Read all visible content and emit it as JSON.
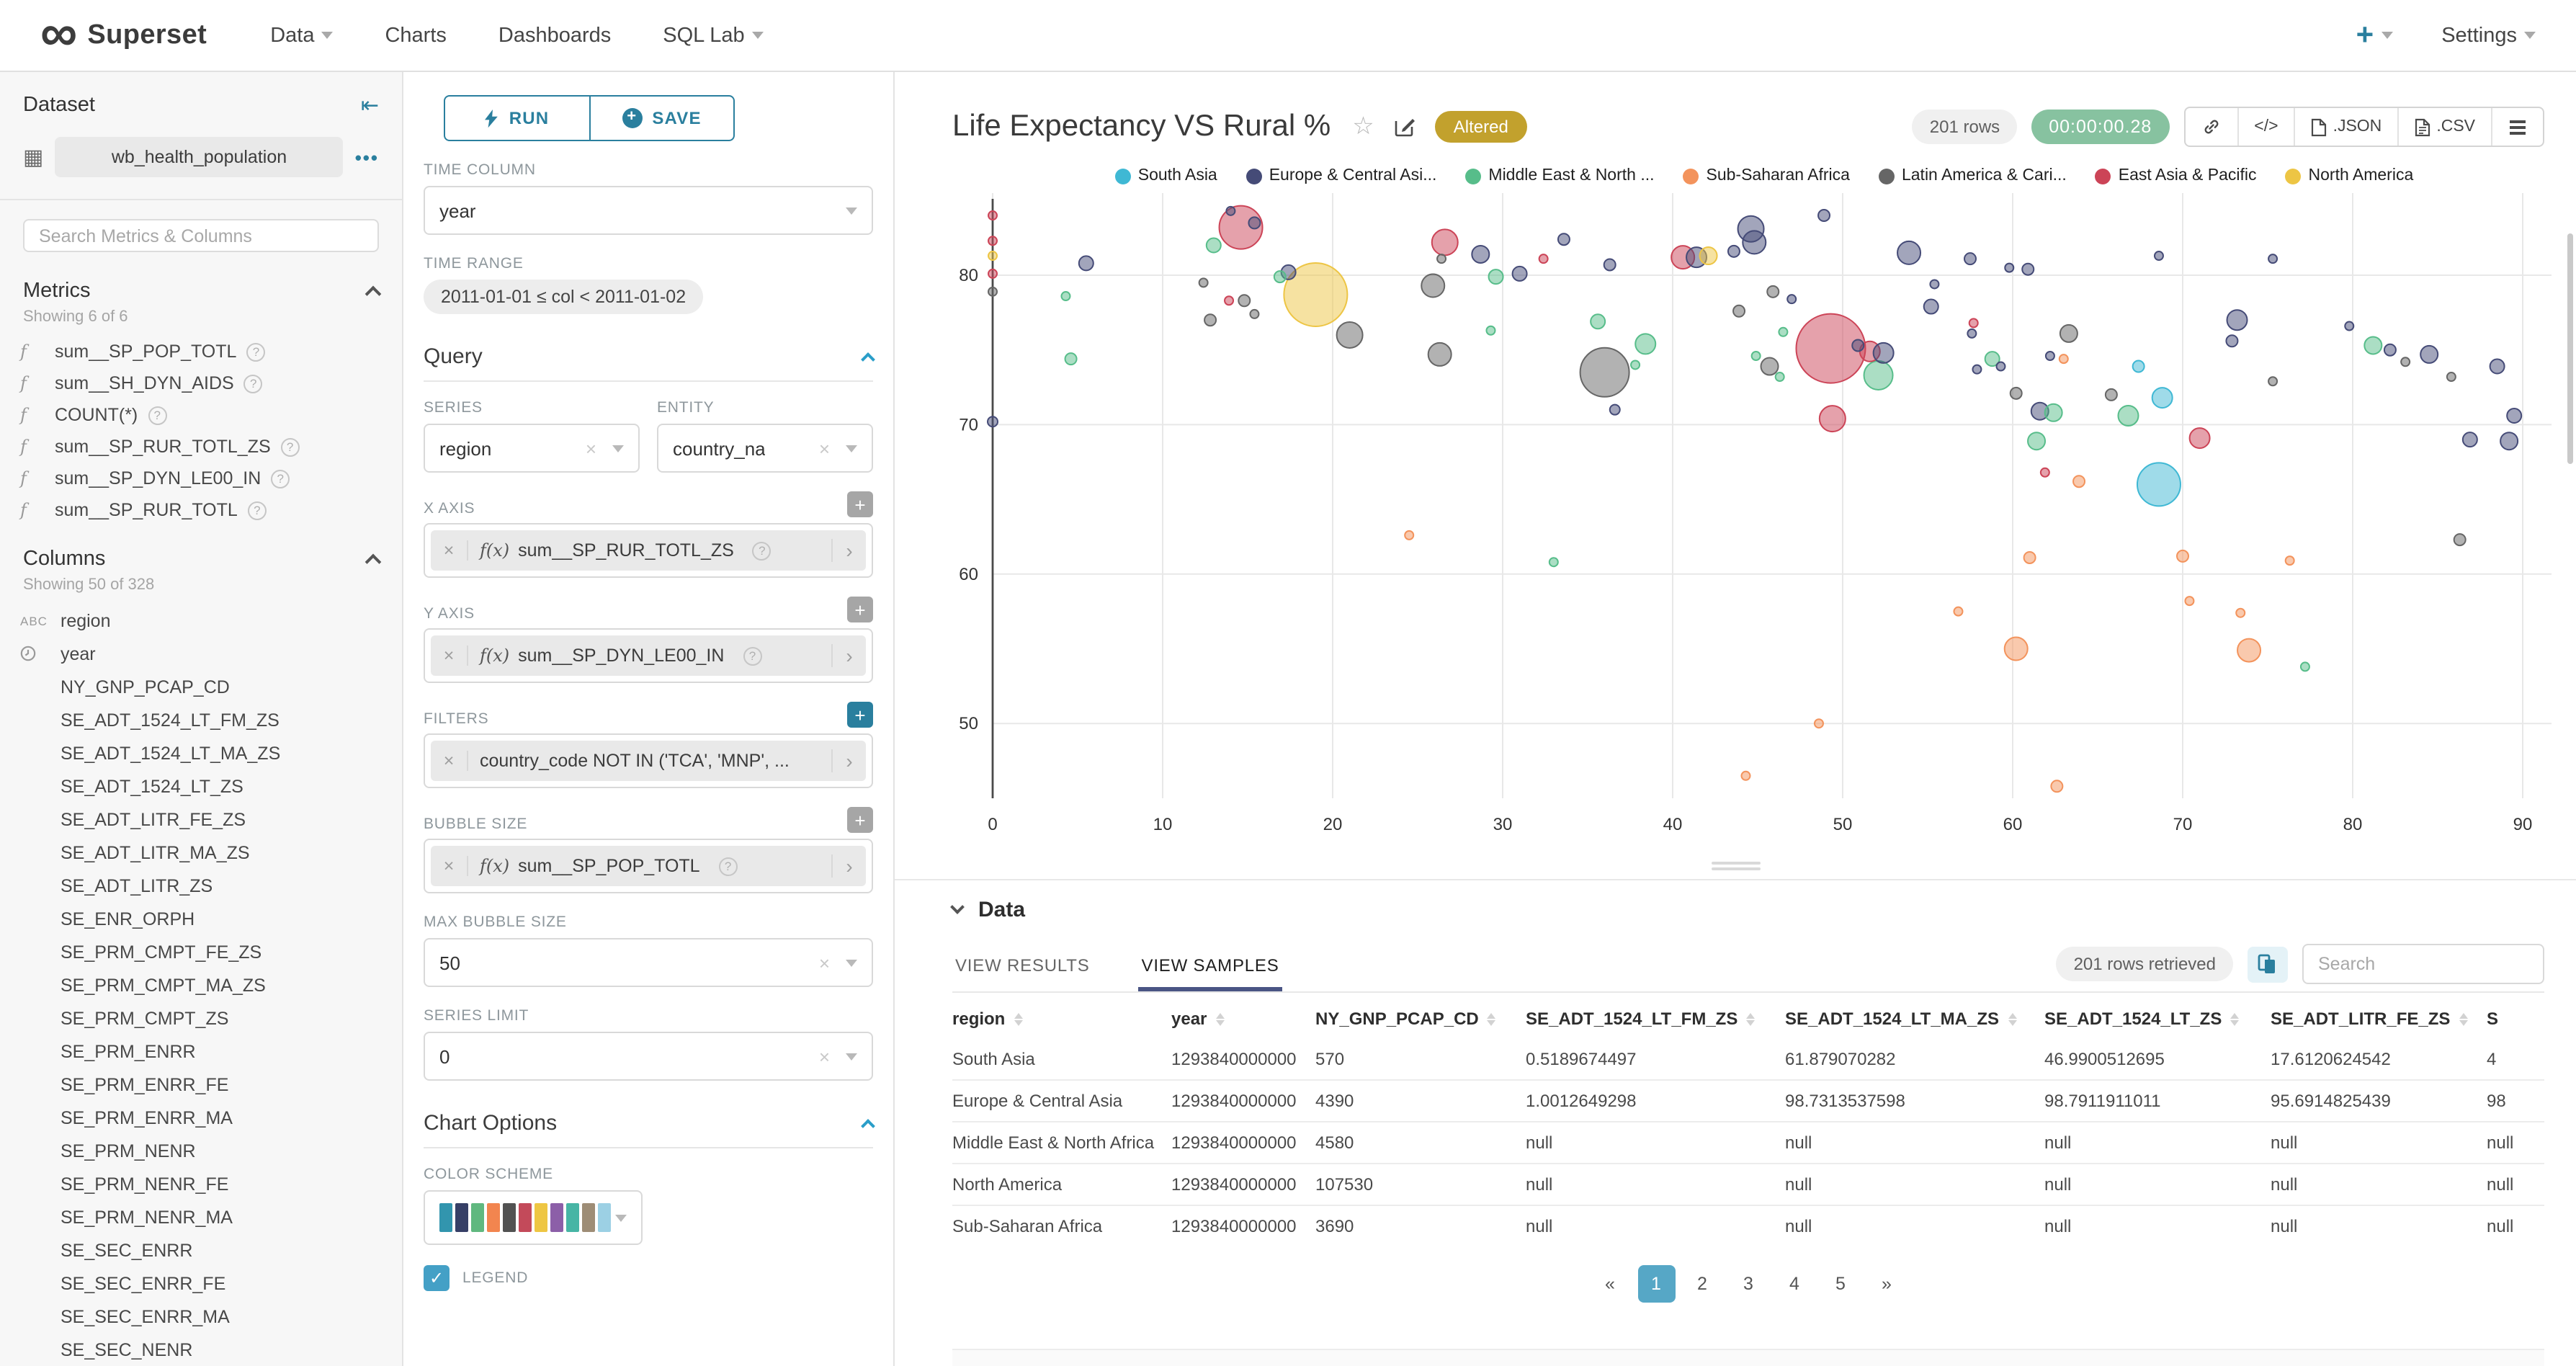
{
  "navbar": {
    "brand": "Superset",
    "items": [
      {
        "label": "Data",
        "caret": true
      },
      {
        "label": "Charts",
        "caret": false
      },
      {
        "label": "Dashboards",
        "caret": false
      },
      {
        "label": "SQL Lab",
        "caret": true
      }
    ],
    "plus_label": "+",
    "settings_label": "Settings"
  },
  "sidebar": {
    "title": "Dataset",
    "dataset_name": "wb_health_population",
    "more_label": "•••",
    "search_placeholder": "Search Metrics & Columns",
    "metrics_title": "Metrics",
    "metrics_count": "Showing 6 of 6",
    "metrics": [
      "sum__SP_POP_TOTL",
      "sum__SH_DYN_AIDS",
      "COUNT(*)",
      "sum__SP_RUR_TOTL_ZS",
      "sum__SP_DYN_LE00_IN",
      "sum__SP_RUR_TOTL"
    ],
    "columns_title": "Columns",
    "columns_count": "Showing 50 of 328",
    "columns": [
      {
        "name": "region",
        "icon": "abc"
      },
      {
        "name": "year",
        "icon": "clock"
      },
      {
        "name": "NY_GNP_PCAP_CD"
      },
      {
        "name": "SE_ADT_1524_LT_FM_ZS"
      },
      {
        "name": "SE_ADT_1524_LT_MA_ZS"
      },
      {
        "name": "SE_ADT_1524_LT_ZS"
      },
      {
        "name": "SE_ADT_LITR_FE_ZS"
      },
      {
        "name": "SE_ADT_LITR_MA_ZS"
      },
      {
        "name": "SE_ADT_LITR_ZS"
      },
      {
        "name": "SE_ENR_ORPH"
      },
      {
        "name": "SE_PRM_CMPT_FE_ZS"
      },
      {
        "name": "SE_PRM_CMPT_MA_ZS"
      },
      {
        "name": "SE_PRM_CMPT_ZS"
      },
      {
        "name": "SE_PRM_ENRR"
      },
      {
        "name": "SE_PRM_ENRR_FE"
      },
      {
        "name": "SE_PRM_ENRR_MA"
      },
      {
        "name": "SE_PRM_NENR"
      },
      {
        "name": "SE_PRM_NENR_FE"
      },
      {
        "name": "SE_PRM_NENR_MA"
      },
      {
        "name": "SE_SEC_ENRR"
      },
      {
        "name": "SE_SEC_ENRR_FE"
      },
      {
        "name": "SE_SEC_ENRR_MA"
      },
      {
        "name": "SE_SEC_NENR"
      }
    ]
  },
  "controls": {
    "run_label": "RUN",
    "save_label": "SAVE",
    "time_column_label": "TIME COLUMN",
    "time_column_value": "year",
    "time_range_label": "TIME RANGE",
    "time_range_value": "2011-01-01 ≤ col < 2011-01-02",
    "query_title": "Query",
    "series_label": "SERIES",
    "series_value": "region",
    "entity_label": "ENTITY",
    "entity_value": "country_na",
    "x_axis_label": "X AXIS",
    "x_axis_value": "sum__SP_RUR_TOTL_ZS",
    "y_axis_label": "Y AXIS",
    "y_axis_value": "sum__SP_DYN_LE00_IN",
    "filters_label": "FILTERS",
    "filters_value": "country_code NOT IN ('TCA', 'MNP', ...",
    "bubble_size_label": "BUBBLE SIZE",
    "bubble_size_value": "sum__SP_POP_TOTL",
    "max_bubble_label": "MAX BUBBLE SIZE",
    "max_bubble_value": "50",
    "series_limit_label": "SERIES LIMIT",
    "series_limit_value": "0",
    "chart_options_title": "Chart Options",
    "color_scheme_label": "COLOR SCHEME",
    "color_swatches": [
      "#3295ae",
      "#363f66",
      "#60b87f",
      "#f2854f",
      "#525252",
      "#c34a5a",
      "#eec643",
      "#8c5fa8",
      "#47b5a5",
      "#9e8d76",
      "#9cd0e4"
    ],
    "legend_label": "LEGEND"
  },
  "chart_header": {
    "title": "Life Expectancy VS Rural %",
    "badge": "Altered",
    "rows_pill": "201 rows",
    "timer": "00:00:00.28",
    "code_label": "</>",
    "json_label": ".JSON",
    "csv_label": ".CSV"
  },
  "chart_data": {
    "type": "scatter",
    "title": "Life Expectancy VS Rural %",
    "xlabel": "sum__SP_RUR_TOTL_ZS",
    "ylabel": "sum__SP_DYN_LE00_IN",
    "xlim": [
      0,
      90
    ],
    "ylim": [
      45,
      85.5
    ],
    "x_ticks": [
      0,
      10,
      20,
      30,
      40,
      50,
      60,
      70,
      80,
      90
    ],
    "y_ticks": [
      50,
      60,
      70,
      80
    ],
    "grid": true,
    "legend_position": "top",
    "series": [
      {
        "name": "South Asia",
        "color": "#3fb8d4"
      },
      {
        "name": "Europe & Central Asi...",
        "color": "#454b77"
      },
      {
        "name": "Middle East & North ...",
        "color": "#57bd8a"
      },
      {
        "name": "Sub-Saharan Africa",
        "color": "#f3935c"
      },
      {
        "name": "Latin America & Cari...",
        "color": "#666666"
      },
      {
        "name": "East Asia & Pacific",
        "color": "#cc4457"
      },
      {
        "name": "North America",
        "color": "#edc544"
      }
    ],
    "points": [
      [
        0,
        84,
        3,
        5
      ],
      [
        0,
        82.3,
        3,
        5
      ],
      [
        0,
        81.3,
        3,
        6
      ],
      [
        0,
        80.1,
        3,
        5
      ],
      [
        0,
        78.9,
        3,
        4
      ],
      [
        0,
        70.2,
        3.5,
        1
      ],
      [
        5.5,
        80.8,
        5,
        1
      ],
      [
        4.3,
        78.6,
        3,
        2
      ],
      [
        4.6,
        74.4,
        4,
        2
      ],
      [
        13,
        82,
        5,
        2
      ],
      [
        14.6,
        83.2,
        15,
        5
      ],
      [
        14,
        84.3,
        3,
        1
      ],
      [
        15.4,
        83.5,
        4,
        1
      ],
      [
        12.4,
        79.5,
        3,
        4
      ],
      [
        13.9,
        78.3,
        3,
        5
      ],
      [
        14.8,
        78.3,
        4,
        4
      ],
      [
        12.8,
        77,
        4,
        4
      ],
      [
        15.4,
        77.4,
        3,
        4
      ],
      [
        16.9,
        79.9,
        4,
        2
      ],
      [
        17.4,
        80.2,
        5,
        1
      ],
      [
        21,
        76,
        9,
        4
      ],
      [
        19,
        78.7,
        22,
        6
      ],
      [
        26.6,
        82.2,
        9,
        5
      ],
      [
        26.4,
        81.1,
        3,
        4
      ],
      [
        28.7,
        81.4,
        6,
        1
      ],
      [
        25.9,
        79.3,
        8,
        4
      ],
      [
        29.6,
        79.9,
        5,
        2
      ],
      [
        31,
        80.1,
        5,
        1
      ],
      [
        26.3,
        74.7,
        8,
        4
      ],
      [
        29.3,
        76.3,
        3,
        2
      ],
      [
        33.6,
        82.4,
        4,
        1
      ],
      [
        32.4,
        81.1,
        3,
        5
      ],
      [
        36.3,
        80.7,
        4,
        1
      ],
      [
        35.6,
        76.9,
        5,
        2
      ],
      [
        36,
        73.5,
        17,
        4
      ],
      [
        36.6,
        71,
        3.5,
        1
      ],
      [
        38.4,
        75.4,
        7,
        2
      ],
      [
        37.8,
        74,
        3,
        2
      ],
      [
        40.6,
        81.2,
        8,
        5
      ],
      [
        41.4,
        81.2,
        7,
        1
      ],
      [
        42.1,
        81.3,
        6,
        6
      ],
      [
        44.6,
        83.1,
        9,
        1
      ],
      [
        44.8,
        82.2,
        8,
        1
      ],
      [
        43.6,
        81.6,
        4,
        1
      ],
      [
        48.9,
        84,
        4,
        1
      ],
      [
        47,
        78.4,
        3,
        1
      ],
      [
        45.9,
        78.9,
        4,
        4
      ],
      [
        43.9,
        77.6,
        4,
        4
      ],
      [
        49.3,
        75.1,
        24,
        5
      ],
      [
        49.4,
        70.4,
        9,
        5
      ],
      [
        46.5,
        76.2,
        3,
        2
      ],
      [
        44.9,
        74.6,
        3,
        2
      ],
      [
        45.7,
        73.9,
        6,
        4
      ],
      [
        46.3,
        73.2,
        3,
        2
      ],
      [
        51.6,
        74.9,
        7,
        5
      ],
      [
        52.4,
        74.8,
        7,
        1
      ],
      [
        52.1,
        73.3,
        10,
        2
      ],
      [
        50.9,
        75.3,
        4,
        1
      ],
      [
        53.9,
        81.5,
        8,
        1
      ],
      [
        55.4,
        79.4,
        3,
        1
      ],
      [
        55.2,
        77.9,
        5,
        1
      ],
      [
        57.5,
        81.1,
        4,
        1
      ],
      [
        59.8,
        80.5,
        3,
        1
      ],
      [
        60.9,
        80.4,
        4,
        1
      ],
      [
        57.7,
        76.8,
        3,
        5
      ],
      [
        57.6,
        76.1,
        3,
        1
      ],
      [
        58.8,
        74.4,
        5,
        2
      ],
      [
        59.3,
        73.9,
        3,
        1
      ],
      [
        57.9,
        73.7,
        3,
        1
      ],
      [
        60.2,
        72.1,
        4,
        4
      ],
      [
        63.3,
        76.1,
        6,
        4
      ],
      [
        62.2,
        74.6,
        3,
        1
      ],
      [
        63,
        74.4,
        3,
        3
      ],
      [
        61.6,
        70.9,
        6,
        1
      ],
      [
        62.4,
        70.8,
        6,
        2
      ],
      [
        61.4,
        68.9,
        6,
        2
      ],
      [
        61.9,
        66.8,
        3,
        5
      ],
      [
        63.9,
        66.2,
        4,
        3
      ],
      [
        65.8,
        72,
        4,
        4
      ],
      [
        66.8,
        70.6,
        7,
        2
      ],
      [
        68.6,
        66,
        15,
        0
      ],
      [
        68.8,
        71.8,
        7,
        0
      ],
      [
        67.4,
        73.9,
        4,
        0
      ],
      [
        71,
        69.1,
        7,
        5
      ],
      [
        72.9,
        75.6,
        4,
        1
      ],
      [
        73.2,
        77,
        7,
        1
      ],
      [
        75.3,
        72.9,
        3,
        4
      ],
      [
        75.3,
        81.1,
        3,
        1
      ],
      [
        68.6,
        81.3,
        3,
        1
      ],
      [
        79.8,
        76.6,
        3,
        1
      ],
      [
        81.2,
        75.3,
        6,
        2
      ],
      [
        82.2,
        75,
        4,
        1
      ],
      [
        84.5,
        74.7,
        6,
        1
      ],
      [
        83.1,
        74.2,
        3,
        4
      ],
      [
        85.8,
        73.2,
        3,
        4
      ],
      [
        86.9,
        69,
        5,
        1
      ],
      [
        88.5,
        73.9,
        5,
        1
      ],
      [
        89.5,
        70.6,
        5,
        1
      ],
      [
        89.2,
        68.9,
        6,
        1
      ],
      [
        86.3,
        62.3,
        4,
        4
      ],
      [
        44.3,
        46.5,
        3,
        3
      ],
      [
        62.6,
        45.8,
        4,
        3
      ],
      [
        24.5,
        62.6,
        3,
        3
      ],
      [
        33,
        60.8,
        3,
        2
      ],
      [
        48.6,
        50,
        3,
        3
      ],
      [
        56.8,
        57.5,
        3,
        3
      ],
      [
        60.2,
        55,
        8,
        3
      ],
      [
        61,
        61.1,
        4,
        3
      ],
      [
        70.4,
        58.2,
        3,
        3
      ],
      [
        70,
        61.2,
        4,
        3
      ],
      [
        76.3,
        60.9,
        3,
        3
      ],
      [
        73.4,
        57.4,
        3,
        3
      ],
      [
        73.9,
        54.9,
        8,
        3
      ],
      [
        77.2,
        53.8,
        3,
        2
      ]
    ]
  },
  "datapanel": {
    "title": "Data",
    "tabs": [
      "VIEW RESULTS",
      "VIEW SAMPLES"
    ],
    "active_tab": 1,
    "rows_pill": "201 rows retrieved",
    "search_placeholder": "Search",
    "table": {
      "headers": [
        "region",
        "year",
        "NY_GNP_PCAP_CD",
        "SE_ADT_1524_LT_FM_ZS",
        "SE_ADT_1524_LT_MA_ZS",
        "SE_ADT_1524_LT_ZS",
        "SE_ADT_LITR_FE_ZS",
        "S"
      ],
      "rows": [
        [
          "South Asia",
          "1293840000000",
          "570",
          "0.5189674497",
          "61.879070282",
          "46.9900512695",
          "17.6120624542",
          "4"
        ],
        [
          "Europe & Central Asia",
          "1293840000000",
          "4390",
          "1.0012649298",
          "98.7313537598",
          "98.7911911011",
          "95.6914825439",
          "98"
        ],
        [
          "Middle East & North Africa",
          "1293840000000",
          "4580",
          "null",
          "null",
          "null",
          "null",
          "null"
        ],
        [
          "North America",
          "1293840000000",
          "107530",
          "null",
          "null",
          "null",
          "null",
          "null"
        ],
        [
          "Sub-Saharan Africa",
          "1293840000000",
          "3690",
          "null",
          "null",
          "null",
          "null",
          "null"
        ]
      ]
    },
    "pagination": [
      "«",
      "1",
      "2",
      "3",
      "4",
      "5",
      "»"
    ],
    "active_page": "1"
  },
  "colors": {
    "accent": "#2a7f9e",
    "altered_badge": "#c2a12d",
    "timer_pill": "#87c2a0",
    "pagination_active": "#56a7c6",
    "tab_underline": "#4a5584"
  }
}
